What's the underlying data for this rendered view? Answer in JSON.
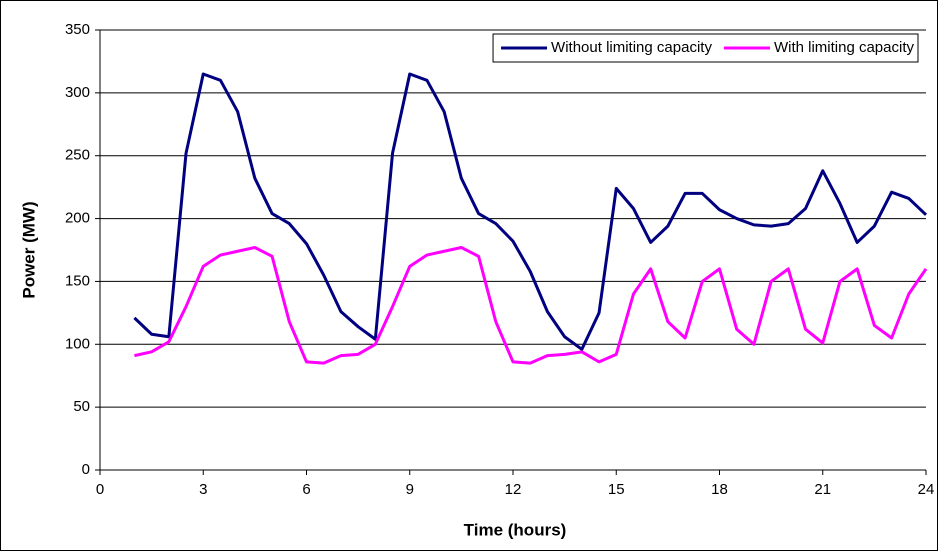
{
  "chart_data": {
    "type": "line",
    "x_label": "Time (hours)",
    "y_label": "Power (MW)",
    "x": [
      1,
      1.5,
      2,
      2.5,
      3,
      3.5,
      4,
      4.5,
      5,
      5.5,
      6,
      6.5,
      7,
      7.5,
      8,
      8.5,
      9,
      9.5,
      10,
      10.5,
      11,
      11.5,
      12,
      12.5,
      13,
      13.5,
      14,
      14.5,
      15,
      15.5,
      16,
      16.5,
      17,
      17.5,
      18,
      18.5,
      19,
      19.5,
      20,
      20.5,
      21,
      21.5,
      22,
      22.5,
      23,
      23.5,
      24
    ],
    "series": [
      {
        "name": "Without limiting capacity",
        "color": "#000080",
        "values": [
          121,
          108,
          106,
          252,
          315,
          310,
          285,
          232,
          204,
          196,
          180,
          155,
          126,
          114,
          104,
          252,
          315,
          310,
          285,
          232,
          204,
          196,
          182,
          158,
          126,
          106,
          96,
          125,
          224,
          208,
          181,
          194,
          220,
          220,
          207,
          200,
          195,
          194,
          196,
          208,
          238,
          212,
          181,
          194,
          221,
          216,
          203
        ]
      },
      {
        "name": "With limiting capacity",
        "color": "#ff00ff",
        "values": [
          91,
          94,
          102,
          130,
          162,
          171,
          174,
          177,
          170,
          118,
          86,
          85,
          91,
          92,
          100,
          130,
          162,
          171,
          174,
          177,
          170,
          118,
          86,
          85,
          91,
          92,
          94,
          86,
          92,
          140,
          160,
          118,
          105,
          150,
          160,
          112,
          100,
          150,
          160,
          112,
          101,
          150,
          160,
          115,
          105,
          140,
          160
        ]
      }
    ],
    "xlim": [
      0,
      24
    ],
    "xticks": [
      0,
      3,
      6,
      9,
      12,
      15,
      18,
      21,
      24
    ],
    "ylim": [
      0,
      350
    ],
    "yticks": [
      0,
      50,
      100,
      150,
      200,
      250,
      300,
      350
    ],
    "grid": true,
    "legend": "top-right"
  }
}
